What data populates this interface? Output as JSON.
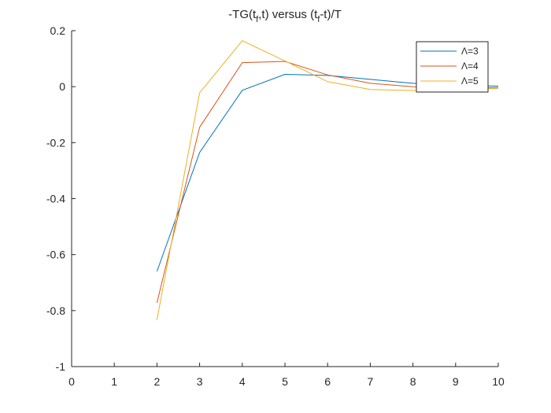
{
  "chart_data": {
    "type": "line",
    "title": "-TG(t",
    "title_sub1": "f",
    "title_mid": ",t) versus (t",
    "title_sub2": "f",
    "title_end": "-t)/T",
    "xlabel": "",
    "ylabel": "",
    "xlim": [
      0,
      10
    ],
    "ylim": [
      -1,
      0.2
    ],
    "xticks": [
      "0",
      "1",
      "2",
      "3",
      "4",
      "5",
      "6",
      "7",
      "8",
      "9",
      "10"
    ],
    "yticks": [
      "-1",
      "-0.8",
      "-0.6",
      "-0.4",
      "-0.2",
      "0",
      "0.2"
    ],
    "xtick_values": [
      0,
      1,
      2,
      3,
      4,
      5,
      6,
      7,
      8,
      9,
      10
    ],
    "ytick_values": [
      -1,
      -0.8,
      -0.6,
      -0.4,
      -0.2,
      0,
      0.2
    ],
    "grid": false,
    "legend_position": "top-right",
    "x": [
      2,
      3,
      4,
      5,
      6,
      7,
      8,
      9,
      10
    ],
    "series": [
      {
        "name": "Λ=3",
        "color": "#0072BD",
        "values": [
          -0.66,
          -0.235,
          -0.013,
          0.044,
          0.04,
          0.026,
          0.012,
          0.006,
          0.002
        ]
      },
      {
        "name": "Λ=4",
        "color": "#D95319",
        "values": [
          -0.772,
          -0.145,
          0.086,
          0.09,
          0.042,
          0.012,
          0.0,
          -0.004,
          -0.003
        ]
      },
      {
        "name": "Λ=5",
        "color": "#EDB120",
        "values": [
          -0.833,
          -0.022,
          0.164,
          0.092,
          0.018,
          -0.01,
          -0.014,
          -0.01,
          -0.006
        ]
      }
    ]
  }
}
